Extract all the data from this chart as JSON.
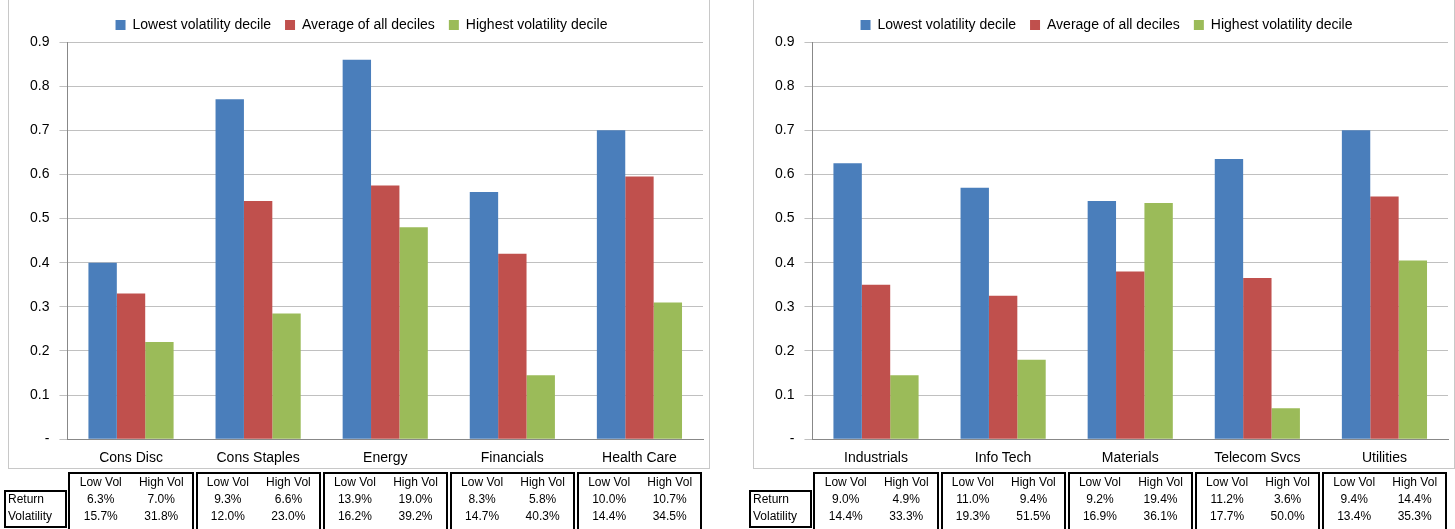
{
  "chart_data": [
    {
      "type": "bar",
      "categories": [
        "Cons Disc",
        "Cons Staples",
        "Energy",
        "Financials",
        "Health Care"
      ],
      "series": [
        {
          "name": "Lowest volatility decile",
          "color": "#4a7ebb",
          "values": [
            0.4,
            0.77,
            0.86,
            0.56,
            0.7
          ]
        },
        {
          "name": "Average of all deciles",
          "color": "#c0504d",
          "values": [
            0.33,
            0.54,
            0.575,
            0.42,
            0.595
          ]
        },
        {
          "name": "Highest volatility decile",
          "color": "#9bbb59",
          "values": [
            0.22,
            0.285,
            0.48,
            0.145,
            0.31
          ]
        }
      ],
      "ylim": [
        0,
        0.9
      ],
      "yticks": [
        {
          "value": 0,
          "label": "-"
        },
        0.1,
        0.2,
        0.3,
        0.4,
        0.5,
        0.6,
        0.7,
        0.8,
        0.9
      ],
      "grid": "y",
      "legend": "top",
      "annotations": [
        "Return",
        "Volatility",
        "Low Vol",
        "High Vol",
        "6.3%",
        "7.0%",
        "15.7%",
        "31.8%",
        "Low Vol",
        "High Vol",
        "9.3%",
        "6.6%",
        "12.0%",
        "23.0%",
        "Low Vol",
        "High Vol",
        "13.9%",
        "19.0%",
        "16.2%",
        "39.2%",
        "Low Vol",
        "High Vol",
        "8.3%",
        "5.8%",
        "14.7%",
        "40.3%",
        "Low Vol",
        "High Vol",
        "10.0%",
        "10.7%",
        "14.4%",
        "34.5%"
      ]
    },
    {
      "type": "bar",
      "categories": [
        "Industrials",
        "Info Tech",
        "Materials",
        "Telecom Svcs",
        "Utilities"
      ],
      "series": [
        {
          "name": "Lowest volatility decile",
          "color": "#4a7ebb",
          "values": [
            0.625,
            0.57,
            0.54,
            0.635,
            0.7
          ]
        },
        {
          "name": "Average of all deciles",
          "color": "#c0504d",
          "values": [
            0.35,
            0.325,
            0.38,
            0.365,
            0.55
          ]
        },
        {
          "name": "Highest volatility decile",
          "color": "#9bbb59",
          "values": [
            0.145,
            0.18,
            0.535,
            0.07,
            0.405
          ]
        }
      ],
      "ylim": [
        0,
        0.9
      ],
      "yticks": [
        {
          "value": 0,
          "label": "-"
        },
        0.1,
        0.2,
        0.3,
        0.4,
        0.5,
        0.6,
        0.7,
        0.8,
        0.9
      ],
      "grid": "y",
      "legend": "top",
      "annotations": [
        "Return",
        "Volatility",
        "Low Vol",
        "High Vol",
        "9.0%",
        "4.9%",
        "14.4%",
        "33.3%",
        "Low Vol",
        "High Vol",
        "11.0%",
        "9.4%",
        "19.3%",
        "51.5%",
        "Low Vol",
        "High Vol",
        "9.2%",
        "19.4%",
        "16.9%",
        "36.1%",
        "Low Vol",
        "High Vol",
        "11.2%",
        "3.6%",
        "17.7%",
        "50.0%",
        "Low Vol",
        "High Vol",
        "9.4%",
        "14.4%",
        "13.4%",
        "35.3%"
      ]
    }
  ]
}
